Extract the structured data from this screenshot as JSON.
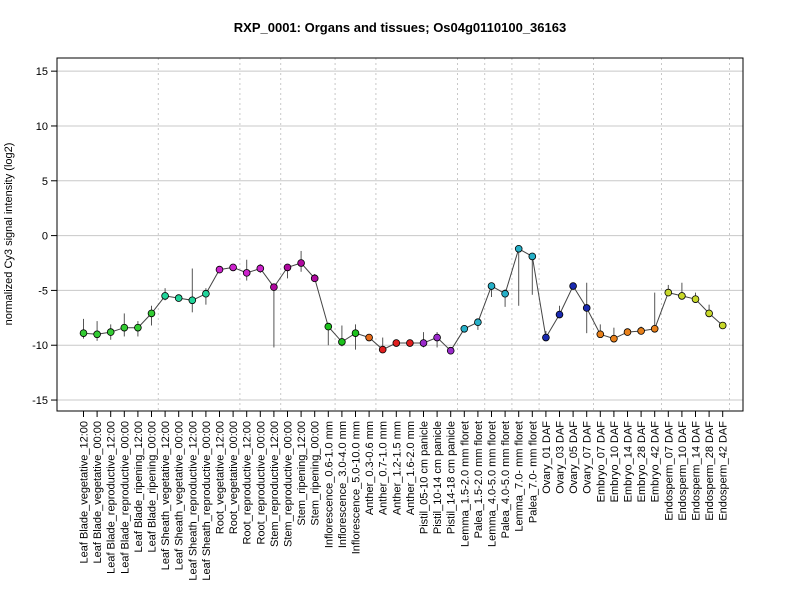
{
  "chart_data": {
    "type": "line",
    "title": "RXP_0001: Organs and tissues; Os04g0110100_36163",
    "xlabel": "",
    "ylabel": "normalized Cy3 signal intensity (log2)",
    "ylim": [
      -16,
      16.2
    ],
    "yticks": [
      -15,
      -10,
      -5,
      0,
      5,
      10,
      15
    ],
    "grid": true,
    "group_separators_after": [
      6,
      12,
      15,
      19,
      22,
      28,
      30,
      32,
      34,
      38,
      43,
      48
    ],
    "categories": [
      "Leaf Blade_vegetative_12:00",
      "Leaf Blade_vegetative_00:00",
      "Leaf Blade_reproductive_12:00",
      "Leaf Blade_reproductive_00:00",
      "Leaf Blade_ripening_12:00",
      "Leaf Blade_ripening_00:00",
      "Leaf Sheath_vegetative_12:00",
      "Leaf Sheath_vegetative_00:00",
      "Leaf Sheath_reproductive_12:00",
      "Leaf Sheath_reproductive_00:00",
      "Root_vegetative_12:00",
      "Root_vegetative_00:00",
      "Root_reproductive_12:00",
      "Root_reproductive_00:00",
      "Stem_reproductive_12:00",
      "Stem_reproductive_00:00",
      "Stem_ripening_12:00",
      "Stem_ripening_00:00",
      "Inflorescence_0.6-1.0 mm",
      "Inflorescence_3.0-4.0 mm",
      "Inflorescence_5.0-10.0 mm",
      "Anther_0.3-0.6 mm",
      "Anther_0.7-1.0 mm",
      "Anther_1.2-1.5 mm",
      "Anther_1.6-2.0 mm",
      "Pistil_05-10 cm panicle",
      "Pistil_10-14 cm panicle",
      "Pistil_14-18 cm panicle",
      "Lemma_1.5-2.0 mm floret",
      "Palea_1.5-2.0 mm floret",
      "Lemma_4.0-5.0 mm floret",
      "Palea_4.0-5.0 mm floret",
      "Lemma_7.0- mm floret",
      "Palea_7.0- mm floret",
      "Ovary_01 DAF",
      "Ovary_03 DAF",
      "Ovary_05 DAF",
      "Ovary_07 DAF",
      "Embryo_07 DAF",
      "Embryo_10 DAF",
      "Embryo_14 DAF",
      "Embryo_28 DAF",
      "Embryo_42 DAF",
      "Endosperm_07 DAF",
      "Endosperm_10 DAF",
      "Endosperm_14 DAF",
      "Endosperm_28 DAF",
      "Endosperm_42 DAF"
    ],
    "values": [
      -8.9,
      -9.0,
      -8.8,
      -8.4,
      -8.4,
      -7.1,
      -5.5,
      -5.7,
      -5.9,
      -5.3,
      -3.1,
      -2.9,
      -3.4,
      -3.0,
      -4.7,
      -2.9,
      -2.5,
      -3.9,
      -8.3,
      -9.7,
      -8.9,
      -9.3,
      -10.4,
      -9.8,
      -9.8,
      -9.8,
      -9.3,
      -10.5,
      -8.5,
      -7.9,
      -4.6,
      -5.3,
      -1.2,
      -1.9,
      -9.3,
      -7.2,
      -4.6,
      -6.6,
      -9.0,
      -9.4,
      -8.8,
      -8.7,
      -8.5,
      -5.2,
      -5.5,
      -5.8,
      -7.1,
      -8.2
    ],
    "err_low": [
      -9.4,
      -9.6,
      -9.5,
      -9.2,
      -9.2,
      -8.2,
      -5.9,
      -5.9,
      -7.0,
      -6.3,
      -3.3,
      -3.1,
      -4.1,
      -3.4,
      -10.2,
      -3.9,
      -3.3,
      -4.1,
      -10.0,
      -10.1,
      -10.4,
      -9.6,
      -10.6,
      -9.9,
      -9.9,
      -10.2,
      -10.2,
      -10.6,
      -8.7,
      -8.6,
      -5.6,
      -6.5,
      -6.4,
      -5.4,
      -9.5,
      -7.4,
      -4.8,
      -8.9,
      -9.2,
      -9.6,
      -9.0,
      -9.0,
      -8.7,
      -5.4,
      -5.7,
      -6.1,
      -7.4,
      -8.4
    ],
    "err_high": [
      -7.6,
      -7.8,
      -8.1,
      -7.1,
      -7.8,
      -6.4,
      -4.8,
      -5.5,
      -3.0,
      -4.8,
      -2.9,
      -2.7,
      -2.2,
      -2.6,
      -4.5,
      -2.7,
      -1.4,
      -3.5,
      -8.1,
      -8.2,
      -8.1,
      -9.0,
      -9.3,
      -9.7,
      -9.7,
      -8.8,
      -8.8,
      -10.2,
      -8.3,
      -7.6,
      -4.4,
      -4.9,
      -1.0,
      -1.7,
      -8.7,
      -6.4,
      -4.4,
      -4.3,
      -8.1,
      -8.4,
      -8.6,
      -8.3,
      -5.2,
      -4.5,
      -4.3,
      -5.2,
      -6.3,
      -8.0
    ],
    "colors": [
      "#33cc33",
      "#33cc33",
      "#33cc33",
      "#33cc33",
      "#33cc33",
      "#33cc33",
      "#22d49a",
      "#22d49a",
      "#22d49a",
      "#22d49a",
      "#cc22cc",
      "#cc22cc",
      "#cc22cc",
      "#cc22cc",
      "#b00aa0",
      "#b00aa0",
      "#b00aa0",
      "#b00aa0",
      "#1dc21d",
      "#1dc21d",
      "#1dc21d",
      "#e66a1a",
      "#e01f1f",
      "#e01f1f",
      "#e01f1f",
      "#9a2acb",
      "#9a2acb",
      "#9a2acb",
      "#26b0c8",
      "#26b0c8",
      "#26b0c8",
      "#26b0c8",
      "#26b0c8",
      "#26b0c8",
      "#1a2ab0",
      "#1a2ab0",
      "#1a2ab0",
      "#1a2ab0",
      "#e8801a",
      "#e8801a",
      "#e8801a",
      "#e8801a",
      "#e8801a",
      "#c8d82a",
      "#c8d82a",
      "#c8d82a",
      "#c8d82a",
      "#c8d82a"
    ]
  }
}
